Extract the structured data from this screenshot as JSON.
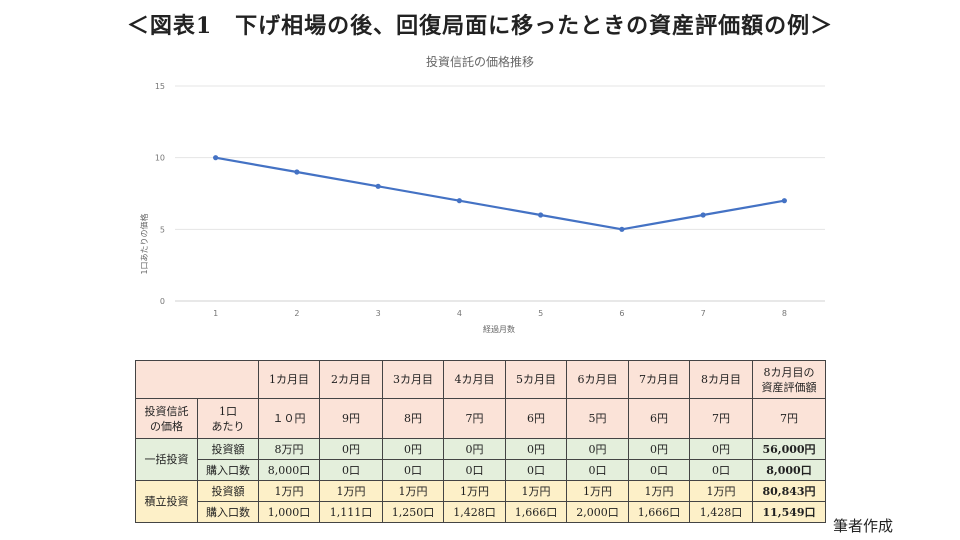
{
  "page": {
    "title": "＜図表1　下げ相場の後、回復局面に移ったときの資産評価額の例＞",
    "source": "筆者作成"
  },
  "chart_data": {
    "type": "line",
    "title": "投資信託の価格推移",
    "xlabel": "経過月数",
    "ylabel": "1口あたりの価格",
    "x": [
      1,
      2,
      3,
      4,
      5,
      6,
      7,
      8
    ],
    "series": [
      {
        "values": [
          10,
          9,
          8,
          7,
          6,
          5,
          6,
          7
        ]
      }
    ],
    "yticks": [
      0,
      5,
      10,
      15
    ],
    "ylim": [
      0,
      15
    ],
    "grid": true,
    "line_color": "#4472c4"
  },
  "table": {
    "header": [
      "1カ月目",
      "2カ月目",
      "3カ月目",
      "4カ月目",
      "5カ月目",
      "6カ月目",
      "7カ月目",
      "8カ月目",
      "8カ月目の\n資産評価額"
    ],
    "price_row": {
      "label": "投資信託\nの価格",
      "sublabel": "1口\nあたり",
      "values": [
        "１０円",
        "9円",
        "8円",
        "7円",
        "6円",
        "5円",
        "6円",
        "7円",
        "7円"
      ]
    },
    "lump_sum": {
      "label": "一括投資",
      "amount_label": "投資額",
      "amounts": [
        "8万円",
        "0円",
        "0円",
        "0円",
        "0円",
        "0円",
        "0円",
        "0円",
        "56,000円"
      ],
      "units_label": "購入口数",
      "units": [
        "8,000口",
        "0口",
        "0口",
        "0口",
        "0口",
        "0口",
        "0口",
        "0口",
        "8,000口"
      ]
    },
    "dca": {
      "label": "積立投資",
      "amount_label": "投資額",
      "amounts": [
        "1万円",
        "1万円",
        "1万円",
        "1万円",
        "1万円",
        "1万円",
        "1万円",
        "1万円",
        "80,843円"
      ],
      "units_label": "購入口数",
      "units": [
        "1,000口",
        "1,111口",
        "1,250口",
        "1,428口",
        "1,666口",
        "2,000口",
        "1,666口",
        "1,428口",
        "11,549口"
      ]
    }
  }
}
